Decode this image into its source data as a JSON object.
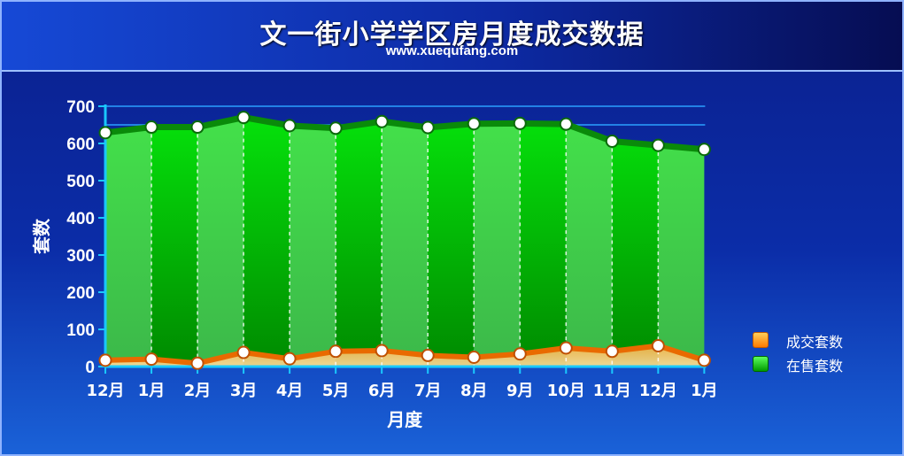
{
  "title": "文一街小学学区房月度成交数据",
  "subtitle": "www.xuequfang.com",
  "chart_data": {
    "type": "area",
    "xlabel": "月度",
    "ylabel": "套数",
    "ylim": [
      0,
      700
    ],
    "yticks": [
      0,
      100,
      200,
      300,
      400,
      500,
      600,
      700
    ],
    "categories": [
      "12月",
      "1月",
      "2月",
      "3月",
      "4月",
      "5月",
      "6月",
      "7月",
      "8月",
      "9月",
      "10月",
      "11月",
      "12月",
      "1月"
    ],
    "series": [
      {
        "name": "在售套数",
        "color": "#00c81e",
        "values": [
          629,
          644,
          644,
          670,
          648,
          641,
          659,
          643,
          653,
          654,
          652,
          606,
          595,
          584
        ]
      },
      {
        "name": "成交套数",
        "color": "#ff8c00",
        "values": [
          17,
          20,
          9,
          38,
          21,
          41,
          43,
          30,
          25,
          34,
          50,
          41,
          56,
          17
        ]
      }
    ],
    "legend_position": "right",
    "grid": false
  }
}
